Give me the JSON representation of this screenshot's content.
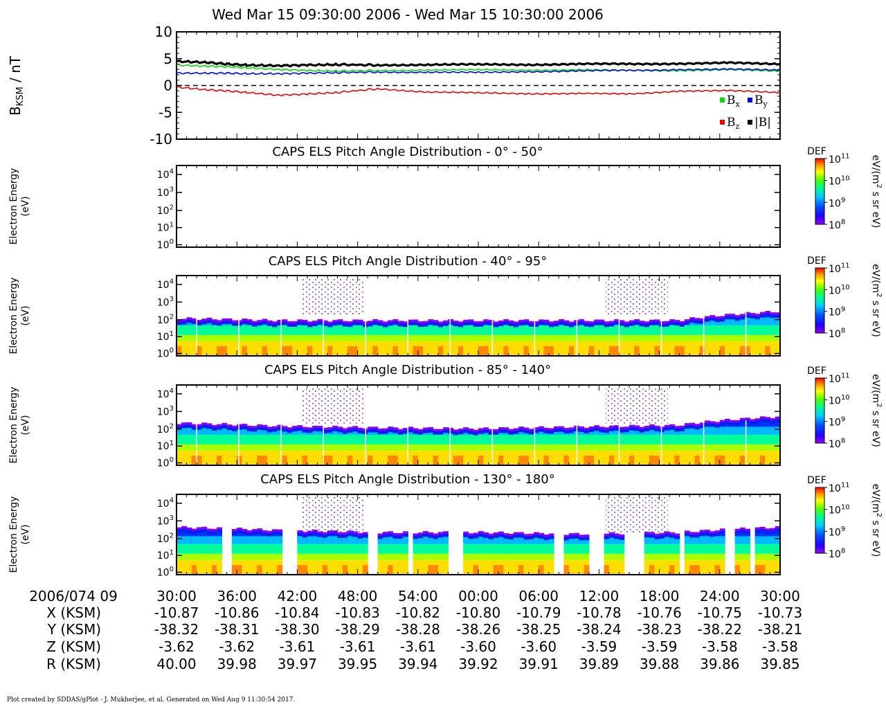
{
  "title": "Wed Mar 15 09:30:00 2006 - Wed Mar 15 10:30:00 2006",
  "credit": "Plot created by SDDAS/gPlot - J. Mukherjee, et al.  Generated on Wed Aug 9 11:30:54 2017.",
  "colors": {
    "bx": "#00dd00",
    "by": "#0000ee",
    "bz": "#ee0000",
    "bmag": "#000000",
    "colorbar": [
      "#9900ff",
      "#0000ff",
      "#00aaff",
      "#00ffaa",
      "#44ff00",
      "#ffff00",
      "#ff8800",
      "#ff0000"
    ]
  },
  "mag_panel": {
    "ylabel_main": "B",
    "ylabel_sub": "KSM",
    "ylabel_unit": " / nT",
    "ylim": [
      -10,
      10
    ],
    "yticks": [
      "10",
      "5",
      "0",
      "-5",
      "-10"
    ],
    "zero_line": "dashed",
    "legend": [
      {
        "key": "bx",
        "main": "B",
        "sub": "x"
      },
      {
        "key": "by",
        "main": "B",
        "sub": "y"
      },
      {
        "key": "bz",
        "main": "B",
        "sub": "z"
      },
      {
        "key": "bmag",
        "main": "|B|",
        "sub": ""
      }
    ]
  },
  "spec_panels": [
    {
      "title": "CAPS ELS Pitch Angle Distribution - 0° - 50°",
      "variant": "empty"
    },
    {
      "title": "CAPS ELS Pitch Angle Distribution - 40° - 95°",
      "variant": "a"
    },
    {
      "title": "CAPS ELS Pitch Angle Distribution - 85° - 140°",
      "variant": "b"
    },
    {
      "title": "CAPS ELS Pitch Angle Distribution - 130° - 180°",
      "variant": "c"
    }
  ],
  "spec_axis": {
    "ylabel_line1": "Electron Energy",
    "ylabel_line2": "(eV)",
    "ytick_base": "10",
    "ytick_exps": [
      "4",
      "3",
      "2",
      "1",
      "0"
    ]
  },
  "colorbar": {
    "label": "DEF",
    "unit_pre": "eV/(m",
    "unit_sup": "2",
    "unit_post": " s sr eV)",
    "tick_base": "10",
    "tick_exps": [
      "11",
      "10",
      "9",
      "8"
    ]
  },
  "x_axis": {
    "rows": [
      {
        "label": "2006/074 09",
        "values": [
          "30:00",
          "36:00",
          "42:00",
          "48:00",
          "54:00",
          "00:00",
          "06:00",
          "12:00",
          "18:00",
          "24:00",
          "30:00"
        ]
      },
      {
        "label": "X (KSM)",
        "values": [
          "-10.87",
          "-10.86",
          "-10.84",
          "-10.83",
          "-10.82",
          "-10.80",
          "-10.79",
          "-10.78",
          "-10.76",
          "-10.75",
          "-10.73"
        ]
      },
      {
        "label": "Y (KSM)",
        "values": [
          "-38.32",
          "-38.31",
          "-38.30",
          "-38.29",
          "-38.28",
          "-38.26",
          "-38.25",
          "-38.24",
          "-38.23",
          "-38.22",
          "-38.21"
        ]
      },
      {
        "label": "Z (KSM)",
        "values": [
          "-3.62",
          "-3.62",
          "-3.61",
          "-3.61",
          "-3.61",
          "-3.60",
          "-3.60",
          "-3.59",
          "-3.59",
          "-3.58",
          "-3.58"
        ]
      },
      {
        "label": "R (KSM)",
        "values": [
          "40.00",
          "39.98",
          "39.97",
          "39.95",
          "39.94",
          "39.92",
          "39.91",
          "39.89",
          "39.88",
          "39.86",
          "39.85"
        ]
      }
    ]
  },
  "chart_data": [
    {
      "type": "line",
      "x_unit": "minutes from 09:30 UT",
      "xlim": [
        0,
        60
      ],
      "ylim": [
        -10,
        10
      ],
      "series": [
        {
          "name": "Bx",
          "x": [
            0,
            3,
            5,
            7,
            10,
            13,
            16,
            20,
            25,
            30,
            35,
            40,
            45,
            50,
            55,
            60
          ],
          "values": [
            3.8,
            3.6,
            3.5,
            3.3,
            3.0,
            2.8,
            2.7,
            2.8,
            2.9,
            2.9,
            2.9,
            2.9,
            2.8,
            2.8,
            2.9,
            2.7
          ]
        },
        {
          "name": "By",
          "x": [
            0,
            3,
            5,
            7,
            10,
            13,
            16,
            20,
            25,
            30,
            35,
            40,
            45,
            50,
            55,
            60
          ],
          "values": [
            2.3,
            2.3,
            2.3,
            2.2,
            2.2,
            2.3,
            2.4,
            2.5,
            2.5,
            2.4,
            2.6,
            2.7,
            2.8,
            3.0,
            3.0,
            2.9
          ]
        },
        {
          "name": "Bz",
          "x": [
            0,
            3,
            5,
            7,
            10,
            13,
            16,
            20,
            25,
            30,
            35,
            40,
            45,
            50,
            55,
            60
          ],
          "values": [
            -0.3,
            -0.8,
            -1.0,
            -1.3,
            -1.8,
            -1.6,
            -1.3,
            -0.6,
            -1.2,
            -1.4,
            -1.5,
            -1.5,
            -1.6,
            -1.0,
            -1.0,
            -1.3
          ]
        },
        {
          "name": "|B|",
          "x": [
            0,
            3,
            5,
            7,
            10,
            13,
            16,
            20,
            25,
            30,
            35,
            40,
            45,
            50,
            55,
            60
          ],
          "values": [
            4.5,
            4.3,
            4.0,
            3.8,
            3.7,
            3.8,
            3.9,
            3.8,
            3.9,
            3.9,
            3.9,
            4.0,
            4.0,
            4.1,
            4.2,
            4.0
          ]
        }
      ]
    },
    {
      "type": "heatmap",
      "title": "CAPS ELS Pitch Angle Distribution - 0° - 50°",
      "yscale": "log",
      "ylim": [
        1,
        20000
      ],
      "zscale": "log",
      "zlim": [
        100000000.0,
        100000000000.0
      ],
      "values": []
    },
    {
      "type": "heatmap",
      "title": "CAPS ELS Pitch Angle Distribution - 40° - 95°",
      "yscale": "log",
      "ylim": [
        1,
        20000
      ],
      "zscale": "log",
      "zlim": [
        100000000.0,
        100000000000.0
      ],
      "x": [
        0,
        10,
        20,
        30,
        40,
        50,
        60
      ],
      "plasma_edge_eV": [
        80,
        60,
        60,
        60,
        60,
        60,
        200
      ],
      "log10_def_at_1eV": [
        10.5,
        10.5,
        10.5,
        10.5,
        10.5,
        10.5,
        10.5
      ],
      "data_gaps": []
    },
    {
      "type": "heatmap",
      "title": "CAPS ELS Pitch Angle Distribution - 85° - 140°",
      "yscale": "log",
      "ylim": [
        1,
        20000
      ],
      "zscale": "log",
      "zlim": [
        100000000.0,
        100000000000.0
      ],
      "x": [
        0,
        10,
        20,
        30,
        40,
        50,
        60
      ],
      "plasma_edge_eV": [
        150,
        100,
        80,
        70,
        90,
        110,
        350
      ],
      "log10_def_at_1eV": [
        10.4,
        10.4,
        10.4,
        10.4,
        10.4,
        10.4,
        10.4
      ],
      "data_gaps": []
    },
    {
      "type": "heatmap",
      "title": "CAPS ELS Pitch Angle Distribution - 130° - 180°",
      "yscale": "log",
      "ylim": [
        1,
        20000
      ],
      "zscale": "log",
      "zlim": [
        100000000.0,
        100000000000.0
      ],
      "x": [
        0,
        10,
        20,
        30,
        40,
        50,
        60
      ],
      "plasma_edge_eV": [
        300,
        200,
        150,
        150,
        120,
        150,
        300
      ],
      "log10_def_at_1eV": [
        10.6,
        10.6,
        10.6,
        10.6,
        10.6,
        10.6,
        10.6
      ],
      "data_gaps": [
        [
          4.4,
          5.4
        ],
        [
          10.4,
          11.8
        ],
        [
          19.2,
          20.0
        ],
        [
          22.8,
          23.4
        ],
        [
          26.8,
          28.5
        ],
        [
          37.6,
          38.4
        ],
        [
          41.0,
          42.4
        ],
        [
          44.6,
          46.6
        ],
        [
          50.0,
          50.6
        ],
        [
          54.6,
          55.5
        ],
        [
          57.0,
          57.6
        ]
      ]
    }
  ]
}
